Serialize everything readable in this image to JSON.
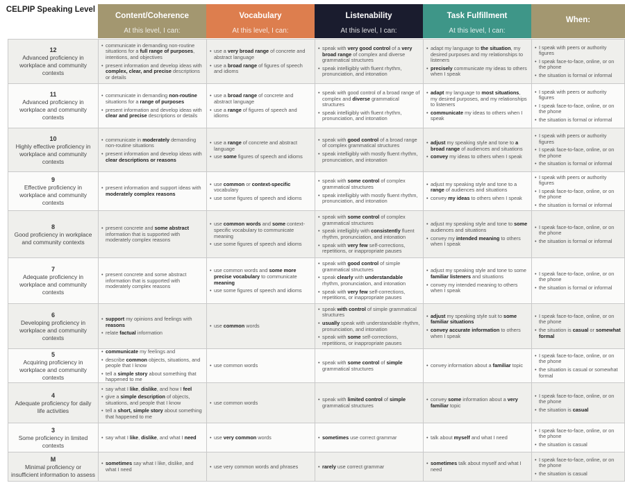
{
  "corner_label": "CELPIP Speaking Level",
  "headers": [
    {
      "title": "Content/Coherence",
      "subtitle": "At this level, I can:",
      "color": "#a39770"
    },
    {
      "title": "Vocabulary",
      "subtitle": "At this level, I can:",
      "color": "#dd7e4e"
    },
    {
      "title": "Listenability",
      "subtitle": "At this level, I can:",
      "color": "#1a1c2e"
    },
    {
      "title": "Task Fulfillment",
      "subtitle": "At this level, I can:",
      "color": "#3e9688"
    },
    {
      "title": "When:",
      "subtitle": "",
      "color": "#a39770"
    }
  ],
  "rows": [
    {
      "level": "12",
      "desc": "Advanced proficiency in workplace and community contexts",
      "cells": [
        [
          "communicate in demanding non-routine situations for a <b>full range of purposes</b>, intentions, and objectives",
          "present information and develop ideas with <b>complex, clear, and precise</b> descriptions or details"
        ],
        [
          "use a <b>very broad range</b> of concrete and abstract language",
          "use a <b>broad range</b> of figures of speech and idioms"
        ],
        [
          "speak with <b>very good control</b> of a <b>very broad range</b> of complex and diverse grammatical structures",
          "speak intelligibly with fluent rhythm, pronunciation, and intonation"
        ],
        [
          "adapt my language to <b>the situation</b>, my desired purposes and my relationships to listeners",
          "<b>precisely</b> communicate my ideas to others when I speak"
        ],
        [
          "I speak with peers or authority figures",
          "I speak face-to-face, online, or on the phone",
          "the situation is formal or informal"
        ]
      ]
    },
    {
      "level": "11",
      "desc": "Advanced proficiency in workplace and community contexts",
      "cells": [
        [
          "communicate in demanding <b>non-routine</b> situations for a <b>range of purposes</b>",
          "present information and develop ideas with <b>clear and precise</b> descriptions or details"
        ],
        [
          "use a <b>broad range</b> of concrete and abstract language",
          "use a <b>range</b> of figures of speech and idioms"
        ],
        [
          "speak with good control of a broad range of complex and <b>diverse</b> grammatical structures",
          "speak intelligibly with fluent rhythm, pronunciation, and intonation"
        ],
        [
          "<b>adapt</b> my language to <b>most situations</b>, my desired purposes, and my relationships to listeners",
          "<b>communicate</b> my ideas to others when I speak"
        ],
        [
          "I speak with peers or authority figures",
          "I speak face-to-face, online, or on the phone",
          "the situation is formal or informal"
        ]
      ]
    },
    {
      "level": "10",
      "desc": "Highly effective proficiency in workplace and community contexts",
      "cells": [
        [
          "communicate in <b>moderately</b> demanding non-routine situations",
          "present information and develop ideas with <b>clear descriptions or reasons</b>"
        ],
        [
          "use a <b>range</b> of concrete and abstract language",
          "use <b>some</b> figures of speech and idioms"
        ],
        [
          "speak with <b>good control</b> of a broad range of complex grammatical structures",
          "speak intelligibly with mostly fluent rhythm, pronunciation, and intonation"
        ],
        [
          "<b>adjust</b> my speaking style and tone to <b>a broad range</b> of audiences and situations",
          "<b>convey</b> my ideas to others when I speak"
        ],
        [
          "I speak with peers or authority figures",
          "I speak face-to-face, online, or on the phone",
          "the situation is formal or informal"
        ]
      ]
    },
    {
      "level": "9",
      "desc": "Effective proficiency in workplace and community contexts",
      "cells": [
        [
          "present information and support ideas with <b>moderately complex reasons</b>"
        ],
        [
          "use <b>common</b> or <b>context-specific</b> vocabulary",
          "use some figures of speech and idioms"
        ],
        [
          "speak with <b>some control</b> of complex grammatical structures",
          "speak intelligibly with mostly fluent rhythm, pronunciation, and intonation"
        ],
        [
          "adjust my speaking style and tone to a <b>range</b> of audiences and situations",
          "convey <b>my ideas</b> to others when I speak"
        ],
        [
          "I speak with peers or authority figures",
          "I speak face-to-face, online, or on the phone",
          "the situation is formal or informal"
        ]
      ]
    },
    {
      "level": "8",
      "desc": "Good proficiency in workplace and community contexts",
      "cells": [
        [
          "present concrete and <b>some abstract</b> information that is supported with moderately complex reasons"
        ],
        [
          "use <b>common words</b> and <b>some</b> context-specific vocabulary to communicate meaning",
          "use some figures of speech and idioms"
        ],
        [
          "speak with <b>some control</b> of complex grammatical structures",
          "speak intelligibly with <b>consistently</b> fluent rhythm, pronunciation, and intonation",
          "speak with <b>very few</b> self-corrections, repetitions, or inappropriate pauses"
        ],
        [
          "adjust my speaking style and tone to <b>some</b> audiences and situations",
          "convey my <b>intended meaning</b> to others when I speak"
        ],
        [
          "I speak face-to-face, online, or on the phone",
          "the situation is formal or informal"
        ]
      ]
    },
    {
      "level": "7",
      "desc": "Adequate proficiency in workplace and community contexts",
      "cells": [
        [
          "present concrete and some abstract information that is supported with moderately complex reasons"
        ],
        [
          "use common words and <b>some more precise vocabulary</b> to communicate <b>meaning</b>",
          "use some figures of speech and idioms"
        ],
        [
          "speak with <b>good control</b> of simple grammatical structures",
          "speak <b>clearly</b> with <b>understandable</b> rhythm, pronunciation, and intonation",
          "speak with <b>very few</b> self-corrections, repetitions, or inappropriate pauses"
        ],
        [
          "adjust my speaking style and tone to some <b>familiar listeners</b> and situations",
          "convey my intended meaning to others when I speak"
        ],
        [
          "I speak face-to-face, online, or on the phone",
          "the situation is formal or informal"
        ]
      ]
    },
    {
      "level": "6",
      "desc": "Developing proficiency in workplace and community contexts",
      "cells": [
        [
          "<b>support</b> my opinions and feelings with <b>reasons</b>",
          "relate <b>factual</b> information"
        ],
        [
          "use <b>common</b> words"
        ],
        [
          "speak <b>with control</b> of simple grammatical structures",
          "<b>usually</b> speak with understandable rhythm, pronunciation, and intonation",
          "speak with <b>some</b> self-corrections, repetitions, or inappropriate pauses"
        ],
        [
          "<b>adjust</b> my speaking style suit to <b>some familiar situations</b>",
          "<b>convey accurate information</b> to others when I speak"
        ],
        [
          "I speak face-to-face, online, or on the phone",
          "the situation is <b>casual</b> or <b>somewhat formal</b>"
        ]
      ]
    },
    {
      "level": "5",
      "desc": "Acquiring proficiency in workplace and community contexts",
      "cells": [
        [
          "<b>communicate</b> my feelings and",
          "describe <b>common</b> objects, situations, and people that I know",
          "tell a <b>simple story</b> about something that happened to me"
        ],
        [
          "use common words"
        ],
        [
          "speak with <b>some control</b> of <b>simple</b> grammatical structures"
        ],
        [
          "convey information about a <b>familiar</b> topic"
        ],
        [
          "I speak face-to-face, online, or on the phone",
          "the situation is casual or somewhat formal"
        ]
      ]
    },
    {
      "level": "4",
      "desc": "Adequate proficiency for daily life activities",
      "cells": [
        [
          "say what I <b>like</b>, <b>dislike</b>, and how I <b>feel</b>",
          "give a <b>simple description</b> of objects, situations, and people that I know",
          "tell a <b>short, simple story</b> about something that happened to me"
        ],
        [
          "use common words"
        ],
        [
          "speak with <b>limited control</b> of <b>simple</b> grammatical structures"
        ],
        [
          "convey <b>some</b> information about a <b>very familiar</b> topic"
        ],
        [
          "I speak face-to-face, online, or on the phone",
          "the situation is <b>casual</b>"
        ]
      ]
    },
    {
      "level": "3",
      "desc": "Some proficiency in limited contexts",
      "cells": [
        [
          "say what I <b>like</b>, <b>dislike</b>, and what I <b>need</b>"
        ],
        [
          "use <b>very common</b> words"
        ],
        [
          "<b>sometimes</b> use correct grammar"
        ],
        [
          "talk about <b>myself</b> and what I need"
        ],
        [
          "I speak face-to-face, online, or on the phone",
          "the situation is casual"
        ]
      ]
    },
    {
      "level": "M",
      "desc": "Minimal proficiency or insufficient information to assess",
      "cells": [
        [
          "<b>sometimes</b> say what I like, dislike, and what I need"
        ],
        [
          "use very common words and phrases"
        ],
        [
          "<b>rarely</b> use correct grammar"
        ],
        [
          "<b>sometimes</b> talk about myself and what I need"
        ],
        [
          "I speak face-to-face, online, or on the phone",
          "the situation is casual"
        ]
      ]
    }
  ]
}
